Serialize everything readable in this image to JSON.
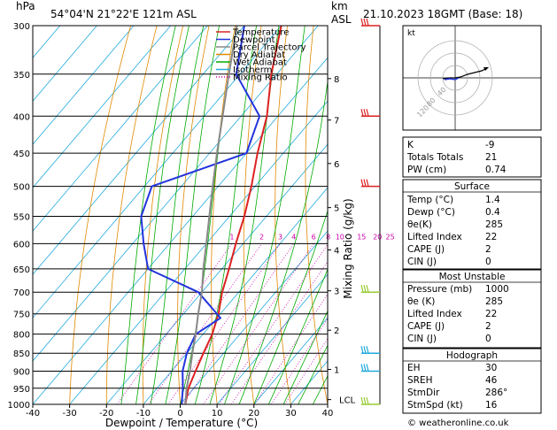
{
  "header": {
    "location": "54°04'N  21°22'E  121m  ASL",
    "datetime": "21.10.2023  18GMT  (Base: 18)",
    "hpa_label": "hPa",
    "km_label": "km",
    "asl_label": "ASL"
  },
  "chart_data": {
    "type": "line",
    "title": "",
    "xlabel": "Dewpoint / Temperature (°C)",
    "ylabel": "hPa",
    "y2label": "Mixing Ratio (g/kg)",
    "xlim": [
      -40,
      40
    ],
    "ylim": [
      1000,
      300
    ],
    "y_scale": "log",
    "x_ticks": [
      -40,
      -30,
      -20,
      -10,
      0,
      10,
      20,
      30,
      40
    ],
    "pressure_levels": [
      300,
      350,
      400,
      450,
      500,
      550,
      600,
      650,
      700,
      750,
      800,
      850,
      900,
      950,
      1000
    ],
    "km_ticks": [
      {
        "km": "8",
        "p": 355
      },
      {
        "km": "7",
        "p": 405
      },
      {
        "km": "6",
        "p": 465
      },
      {
        "km": "5",
        "p": 535
      },
      {
        "km": "4",
        "p": 612
      },
      {
        "km": "3",
        "p": 697
      },
      {
        "km": "2",
        "p": 790
      },
      {
        "km": "1",
        "p": 895
      }
    ],
    "lcl_label": "LCL",
    "lcl_p": 985,
    "mixing_ratio_labels": [
      "1",
      "2",
      "3",
      "4",
      "6",
      "8",
      "10",
      "15",
      "20",
      "25"
    ],
    "mixing_ratio_values": [
      1,
      2,
      3,
      4,
      6,
      8,
      10,
      15,
      20,
      25
    ],
    "series": [
      {
        "name": "Temperature",
        "color": "#dd2222",
        "points": [
          [
            1000,
            1.4
          ],
          [
            950,
            -1.5
          ],
          [
            900,
            -3.5
          ],
          [
            850,
            -5.5
          ],
          [
            800,
            -7.5
          ],
          [
            750,
            -10.5
          ],
          [
            700,
            -14.5
          ],
          [
            650,
            -18
          ],
          [
            600,
            -22
          ],
          [
            550,
            -26
          ],
          [
            500,
            -31
          ],
          [
            450,
            -37
          ],
          [
            400,
            -43
          ],
          [
            350,
            -51.5
          ],
          [
            300,
            -60
          ]
        ]
      },
      {
        "name": "Dewpoint",
        "color": "#2233dd",
        "points": [
          [
            1000,
            0.4
          ],
          [
            950,
            -3
          ],
          [
            900,
            -7
          ],
          [
            850,
            -10
          ],
          [
            800,
            -12
          ],
          [
            760,
            -9
          ],
          [
            700,
            -21
          ],
          [
            650,
            -40
          ],
          [
            600,
            -47
          ],
          [
            550,
            -54
          ],
          [
            500,
            -58
          ],
          [
            450,
            -40
          ],
          [
            400,
            -45
          ],
          [
            350,
            -61
          ],
          [
            300,
            -70
          ]
        ]
      },
      {
        "name": "Parcel Trajectory",
        "color": "#888888",
        "points": [
          [
            1000,
            1.4
          ],
          [
            950,
            -2
          ],
          [
            900,
            -5
          ],
          [
            850,
            -8.5
          ],
          [
            800,
            -12
          ],
          [
            750,
            -16
          ],
          [
            700,
            -20
          ],
          [
            650,
            -25
          ],
          [
            600,
            -30
          ],
          [
            550,
            -35.5
          ],
          [
            500,
            -41.5
          ],
          [
            450,
            -48
          ],
          [
            400,
            -55
          ],
          [
            350,
            -63
          ],
          [
            300,
            -72
          ]
        ]
      }
    ],
    "legend": [
      {
        "label": "Temperature",
        "color": "#dd2222"
      },
      {
        "label": "Dewpoint",
        "color": "#2233dd"
      },
      {
        "label": "Parcel Trajectory",
        "color": "#888888"
      },
      {
        "label": "Dry Adiabat",
        "color": "#e08800"
      },
      {
        "label": "Wet Adiabat",
        "color": "#00aa00"
      },
      {
        "label": "Isotherm",
        "color": "#22aadd"
      },
      {
        "label": "Mixing Ratio",
        "color": "#cc00aa"
      }
    ],
    "legend_placement": "top-right",
    "wind_barbs": [
      {
        "p": 300,
        "color": "#dd2222"
      },
      {
        "p": 400,
        "color": "#dd2222"
      },
      {
        "p": 500,
        "color": "#dd2222"
      },
      {
        "p": 700,
        "color": "#99cc33"
      },
      {
        "p": 850,
        "color": "#22aadd"
      },
      {
        "p": 900,
        "color": "#22aadd"
      },
      {
        "p": 1000,
        "color": "#99cc33"
      }
    ]
  },
  "hodograph": {
    "label": "kt",
    "ring_labels": [
      "40",
      "80",
      "120"
    ]
  },
  "indices": {
    "rows": [
      {
        "label": "K",
        "value": "-9"
      },
      {
        "label": "Totals Totals",
        "value": "21"
      },
      {
        "label": "PW (cm)",
        "value": "0.74"
      }
    ]
  },
  "surface": {
    "title": "Surface",
    "rows": [
      {
        "label": "Temp (°C)",
        "value": "1.4"
      },
      {
        "label": "Dewp (°C)",
        "value": "0.4"
      },
      {
        "label": "θe(K)",
        "value": "285"
      },
      {
        "label": "Lifted Index",
        "value": "22"
      },
      {
        "label": "CAPE (J)",
        "value": "2"
      },
      {
        "label": "CIN (J)",
        "value": "0"
      }
    ]
  },
  "most_unstable": {
    "title": "Most Unstable",
    "rows": [
      {
        "label": "Pressure (mb)",
        "value": "1000"
      },
      {
        "label": "θe (K)",
        "value": "285"
      },
      {
        "label": "Lifted Index",
        "value": "22"
      },
      {
        "label": "CAPE (J)",
        "value": "2"
      },
      {
        "label": "CIN (J)",
        "value": "0"
      }
    ]
  },
  "hodograph_table": {
    "title": "Hodograph",
    "rows": [
      {
        "label": "EH",
        "value": "30"
      },
      {
        "label": "SREH",
        "value": "46"
      },
      {
        "label": "StmDir",
        "value": "286°"
      },
      {
        "label": "StmSpd (kt)",
        "value": "16"
      }
    ]
  },
  "footer": {
    "copyright": "© weatheronline.co.uk"
  }
}
